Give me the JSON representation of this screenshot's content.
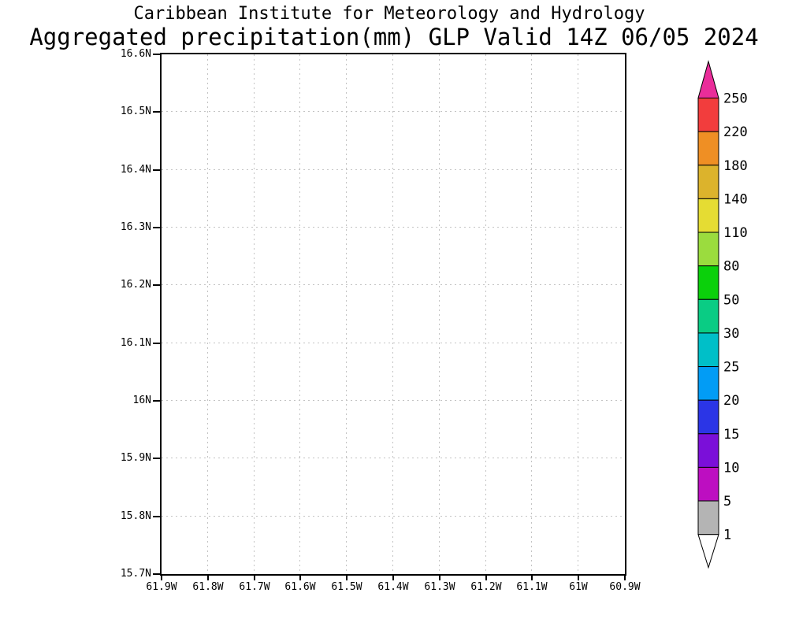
{
  "title": {
    "line1": "Caribbean Institute for Meteorology and Hydrology",
    "line2": "Aggregated precipitation(mm) GLP Valid 14Z 06/05 2024"
  },
  "chart_data": {
    "type": "heatmap",
    "title": "Caribbean Institute for Meteorology and Hydrology",
    "subtitle": "Aggregated precipitation(mm) GLP Valid 14Z 06/05 2024",
    "variable": "Aggregated precipitation (mm)",
    "region_code": "GLP",
    "valid_time": "14Z 06/05 2024",
    "x_axis": {
      "ticks": [
        "61.9W",
        "61.8W",
        "61.7W",
        "61.6W",
        "61.5W",
        "61.4W",
        "61.3W",
        "61.2W",
        "61.1W",
        "61W",
        "60.9W"
      ],
      "range_deg_west": [
        61.9,
        60.9
      ]
    },
    "y_axis": {
      "ticks": [
        "16.6N",
        "16.5N",
        "16.4N",
        "16.3N",
        "16.2N",
        "16.1N",
        "16N",
        "15.9N",
        "15.8N",
        "15.7N"
      ],
      "range_deg_north": [
        16.6,
        15.7
      ]
    },
    "grid": true,
    "grid_color": "#c3c3c3",
    "frame_color": "#000000",
    "plot_background": "#ffffff",
    "values": [],
    "note": "no precipitation shading rendered inside map area (all values below lowest contour)",
    "colorbar": {
      "labels_top_to_bottom": [
        "250",
        "220",
        "180",
        "140",
        "110",
        "80",
        "50",
        "30",
        "25",
        "20",
        "15",
        "10",
        "5",
        "1"
      ],
      "levels": [
        1,
        5,
        10,
        15,
        20,
        25,
        30,
        50,
        80,
        110,
        140,
        180,
        220,
        250
      ],
      "segment_colors_top_to_bottom": [
        "#f23d3d",
        "#ef8f24",
        "#dcb32c",
        "#e5dc33",
        "#9bdc3e",
        "#0bd00b",
        "#0acc84",
        "#00bfc8",
        "#029cf5",
        "#2b35e6",
        "#7b0fd9",
        "#bd0ec1",
        "#b4b4b4"
      ],
      "above_max_color": "#ea2d9a",
      "below_min_color": "#ffffff"
    }
  }
}
